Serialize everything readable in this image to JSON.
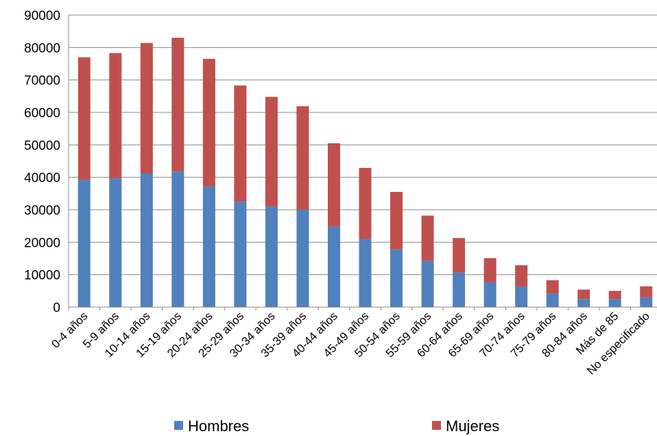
{
  "chart_data": {
    "type": "bar",
    "stacked": true,
    "title": "",
    "xlabel": "",
    "ylabel": "",
    "ylim": [
      0,
      90000
    ],
    "yticks": [
      "0",
      "10000",
      "20000",
      "30000",
      "40000",
      "50000",
      "60000",
      "70000",
      "80000",
      "90000"
    ],
    "grid": true,
    "legend_position": "bottom",
    "categories": [
      "0-4 años",
      "5-9 años",
      "10-14 años",
      "15-19 años",
      "20-24 años",
      "25-29 años",
      "30-34 años",
      "35-39 años",
      "40-44 años",
      "45-49 años",
      "50-54 años",
      "55-59 años",
      "60-64 años",
      "65-69 años",
      "70-74 años",
      "75-79 años",
      "80-84 años",
      "Más de 85",
      "No especificado"
    ],
    "series": [
      {
        "name": "Hombres",
        "color": "#4F81BD",
        "values": [
          39200,
          39700,
          41200,
          41800,
          37200,
          32500,
          31000,
          30000,
          24800,
          21000,
          17800,
          14200,
          10700,
          7700,
          6300,
          4200,
          2500,
          2500,
          3000
        ]
      },
      {
        "name": "Mujeres",
        "color": "#C0504D",
        "values": [
          37800,
          38600,
          40200,
          41200,
          39300,
          35800,
          33800,
          31900,
          25700,
          21900,
          17700,
          14000,
          10600,
          7400,
          6600,
          4100,
          2900,
          2500,
          3400
        ]
      }
    ]
  }
}
